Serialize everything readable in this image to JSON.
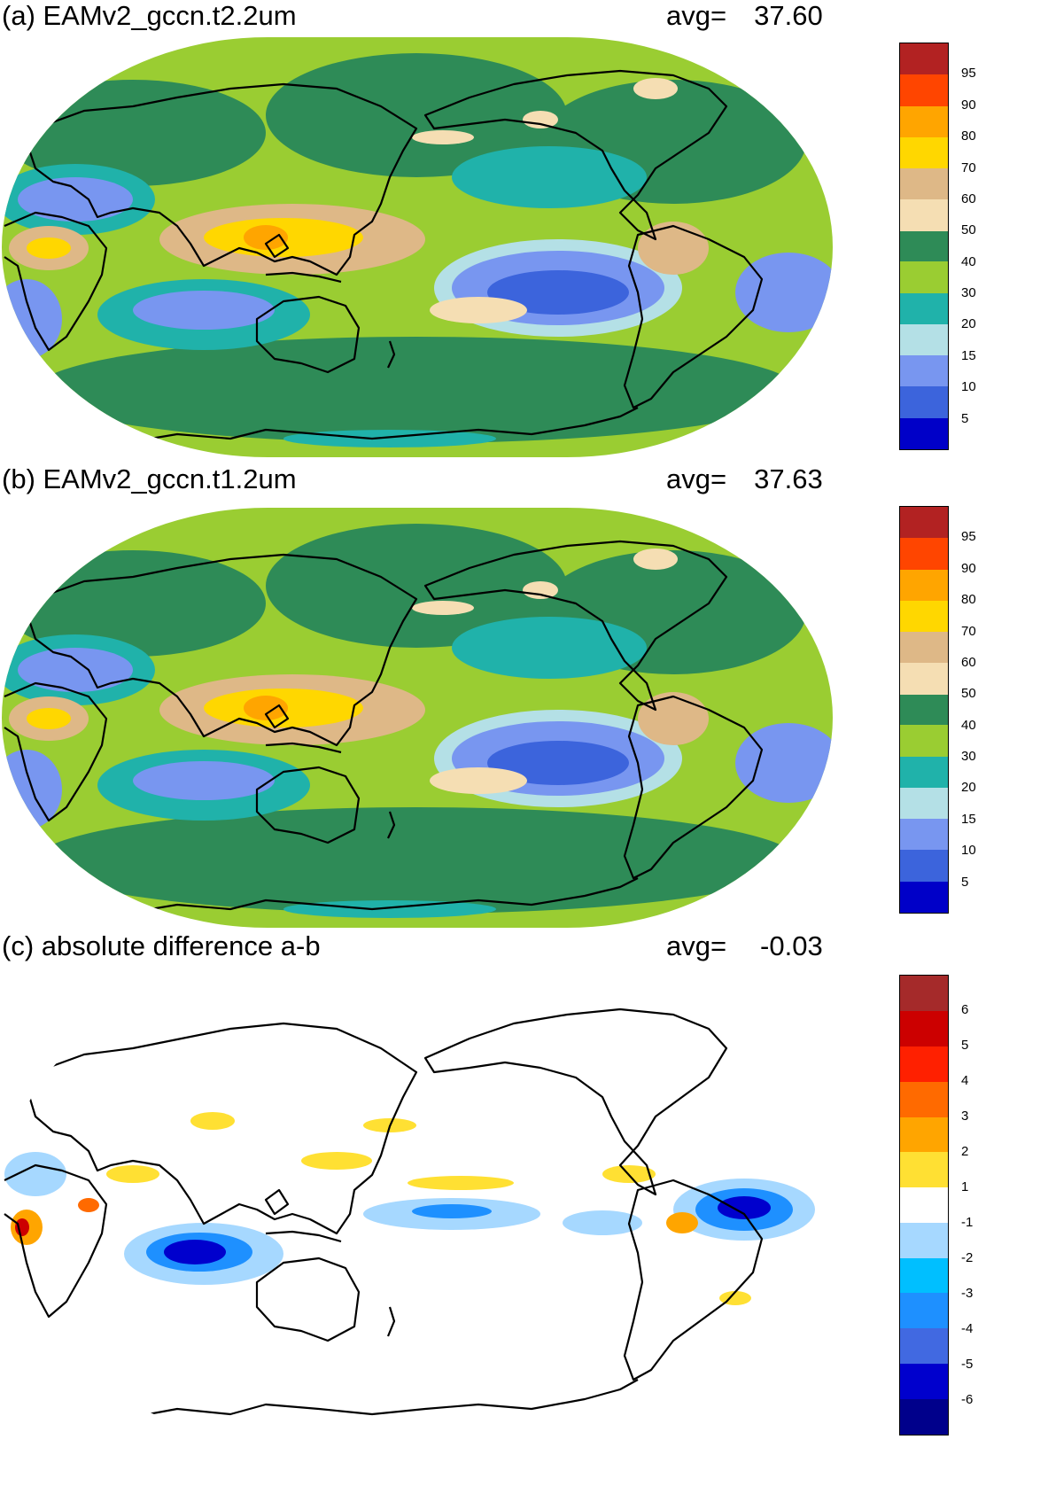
{
  "panels": [
    {
      "title": "(a) EAMv2_gccn.t2.2um",
      "avg_label": "avg=",
      "avg_value": "37.60",
      "colorbar": {
        "colors": [
          "#0000c8",
          "#3c64dc",
          "#7896f0",
          "#b4e0e6",
          "#20b2aa",
          "#9acd32",
          "#2e8b57",
          "#f5deb3",
          "#deb887",
          "#ffd700",
          "#ffa500",
          "#ff4500",
          "#b22222"
        ],
        "labels": [
          "5",
          "10",
          "15",
          "20",
          "30",
          "40",
          "50",
          "60",
          "70",
          "80",
          "90",
          "95"
        ]
      }
    },
    {
      "title": "(b) EAMv2_gccn.t1.2um",
      "avg_label": "avg=",
      "avg_value": "37.63",
      "colorbar": {
        "colors": [
          "#0000c8",
          "#3c64dc",
          "#7896f0",
          "#b4e0e6",
          "#20b2aa",
          "#9acd32",
          "#2e8b57",
          "#f5deb3",
          "#deb887",
          "#ffd700",
          "#ffa500",
          "#ff4500",
          "#b22222"
        ],
        "labels": [
          "5",
          "10",
          "15",
          "20",
          "30",
          "40",
          "50",
          "60",
          "70",
          "80",
          "90",
          "95"
        ]
      }
    },
    {
      "title": "(c) absolute difference a-b",
      "avg_label": "avg=",
      "avg_value": "-0.03",
      "colorbar": {
        "colors": [
          "#00008b",
          "#0000cd",
          "#4169e1",
          "#1e90ff",
          "#00bfff",
          "#a6d8ff",
          "#ffffff",
          "#ffe033",
          "#ffa500",
          "#ff6a00",
          "#ff2000",
          "#cc0000",
          "#a52a2a"
        ],
        "labels": [
          "-6",
          "-5",
          "-4",
          "-3",
          "-2",
          "-1",
          "1",
          "2",
          "3",
          "4",
          "5",
          "6"
        ]
      }
    }
  ]
}
